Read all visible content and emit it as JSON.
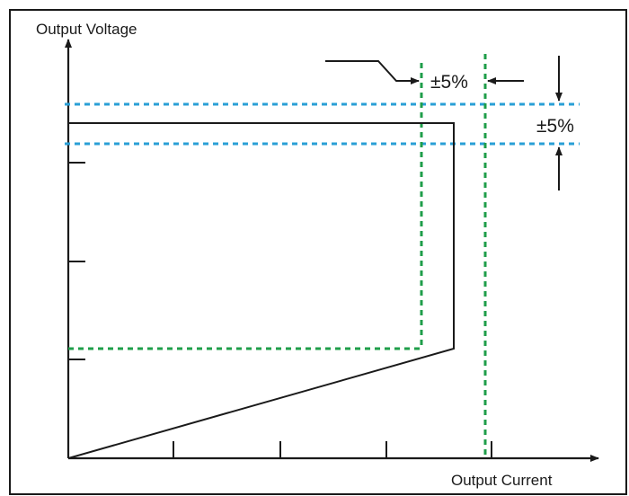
{
  "axes": {
    "y_label": "Output Voltage",
    "x_label": "Output Current"
  },
  "annotations": {
    "current_tolerance": "±5%",
    "voltage_tolerance": "±5%"
  },
  "colors": {
    "frame": "#1a1a1a",
    "curve": "#1a1a1a",
    "voltage_band": "#2a9fd6",
    "current_band": "#1f9e4a"
  }
}
